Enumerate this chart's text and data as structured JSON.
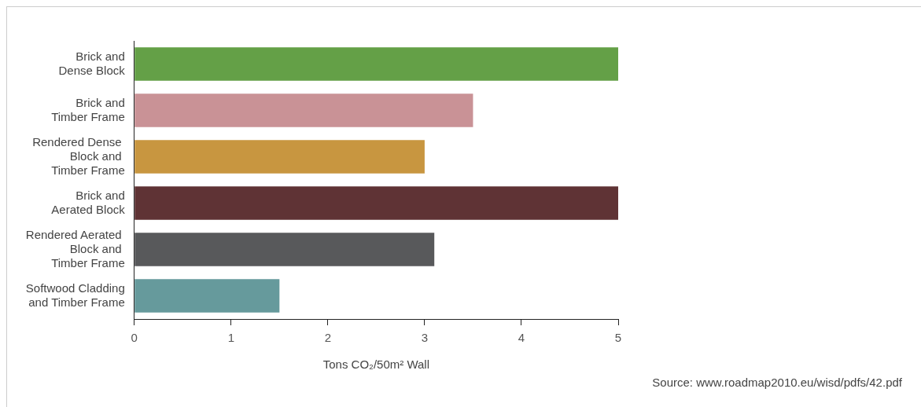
{
  "chart_data": {
    "type": "bar",
    "orientation": "horizontal",
    "categories": [
      "Brick and\nDense Block",
      "Brick and\nTimber Frame",
      "Rendered Dense \nBlock and \nTimber Frame",
      "Brick and\nAerated Block",
      "Rendered Aerated \nBlock and \nTimber Frame",
      "Softwood Cladding\nand Timber Frame"
    ],
    "values": [
      5,
      3.5,
      3,
      5,
      3.1,
      1.5
    ],
    "colors": [
      "#64a047",
      "#c99296",
      "#c89640",
      "#5f3335",
      "#58595b",
      "#669a9c"
    ],
    "xlim": [
      0,
      5
    ],
    "xticks": [
      0,
      1,
      2,
      3,
      4,
      5
    ],
    "xlabel": "Tons CO₂/50m² Wall",
    "annotations": [
      "Source: www.roadmap2010.eu/wisd/pdfs/42.pdf"
    ],
    "grid": false,
    "legend": false
  }
}
